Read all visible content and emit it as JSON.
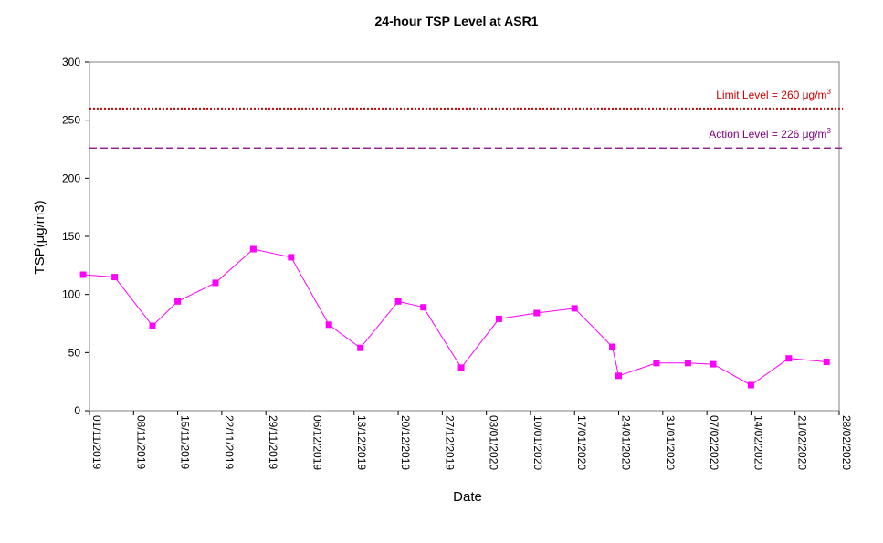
{
  "chart_data": {
    "type": "line",
    "title": "24-hour TSP Level at ASR1",
    "xlabel": "Date",
    "ylabel": "TSP(μg/m3)",
    "ylim": [
      0,
      300
    ],
    "yticks": [
      0,
      50,
      100,
      150,
      200,
      250,
      300
    ],
    "xlim": [
      "01/11/2019",
      "28/02/2020"
    ],
    "xticks": [
      "01/11/2019",
      "08/11/2019",
      "15/11/2019",
      "22/11/2019",
      "29/11/2019",
      "06/12/2019",
      "13/12/2019",
      "20/12/2019",
      "27/12/2019",
      "03/01/2020",
      "10/01/2020",
      "17/01/2020",
      "24/01/2020",
      "31/01/2020",
      "07/02/2020",
      "14/02/2020",
      "21/02/2020",
      "28/02/2020"
    ],
    "grid": false,
    "series": [
      {
        "color": "#ff00ff",
        "marker": "square",
        "points": [
          {
            "x": "31/10/2019",
            "y": 117
          },
          {
            "x": "05/11/2019",
            "y": 115
          },
          {
            "x": "11/11/2019",
            "y": 73
          },
          {
            "x": "15/11/2019",
            "y": 94
          },
          {
            "x": "21/11/2019",
            "y": 110
          },
          {
            "x": "27/11/2019",
            "y": 139
          },
          {
            "x": "03/12/2019",
            "y": 132
          },
          {
            "x": "09/12/2019",
            "y": 74
          },
          {
            "x": "14/12/2019",
            "y": 54
          },
          {
            "x": "20/12/2019",
            "y": 94
          },
          {
            "x": "24/12/2019",
            "y": 89
          },
          {
            "x": "30/12/2019",
            "y": 37
          },
          {
            "x": "05/01/2020",
            "y": 79
          },
          {
            "x": "11/01/2020",
            "y": 84
          },
          {
            "x": "17/01/2020",
            "y": 88
          },
          {
            "x": "23/01/2020",
            "y": 55
          },
          {
            "x": "24/01/2020",
            "y": 30
          },
          {
            "x": "30/01/2020",
            "y": 41
          },
          {
            "x": "04/02/2020",
            "y": 41
          },
          {
            "x": "08/02/2020",
            "y": 40
          },
          {
            "x": "14/02/2020",
            "y": 22
          },
          {
            "x": "20/02/2020",
            "y": 45
          },
          {
            "x": "26/02/2020",
            "y": 42
          }
        ]
      }
    ],
    "reference_lines": [
      {
        "value": 260,
        "label": "Limit Level  = 260 μg/m",
        "superscript": "3",
        "color": "#cc0000",
        "style": "dotted"
      },
      {
        "value": 226,
        "label": "Action Level  = 226 μg/m",
        "superscript": "3",
        "color": "#800080",
        "style": "dashed"
      }
    ]
  }
}
